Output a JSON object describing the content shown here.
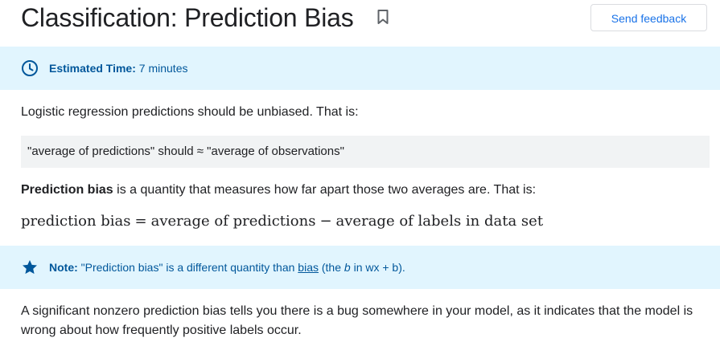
{
  "header": {
    "title": "Classification: Prediction Bias",
    "bookmark_icon": "bookmark-outline-icon",
    "feedback_label": "Send feedback"
  },
  "time_callout": {
    "icon": "clock-icon",
    "label": "Estimated Time:",
    "value": "7 minutes"
  },
  "intro_text": "Logistic regression predictions should be unbiased. That is:",
  "code_line": "\"average of predictions\" should ≈ \"average of observations\"",
  "definition": {
    "term": "Prediction bias",
    "rest": " is a quantity that measures how far apart those two averages are. That is:"
  },
  "formula": {
    "lhs": "prediction bias",
    "equals": "=",
    "term1": "average of predictions",
    "minus": "−",
    "term2": "average of labels in data set"
  },
  "note_callout": {
    "icon": "star-icon",
    "label": "Note:",
    "text_before_link": " \"Prediction bias\" is a different quantity than ",
    "link_text": "bias",
    "text_after_link_1": " (the ",
    "italic_b": "b",
    "text_after_link_2": " in wx + b)."
  },
  "closing_text": "A significant nonzero prediction bias tells you there is a bug somewhere in your model, as it indicates that the model is wrong about how frequently positive labels occur.",
  "colors": {
    "callout_background": "#e1f5fe",
    "callout_text": "#01579b",
    "link_blue": "#1a73e8",
    "code_background": "#f1f3f4"
  }
}
